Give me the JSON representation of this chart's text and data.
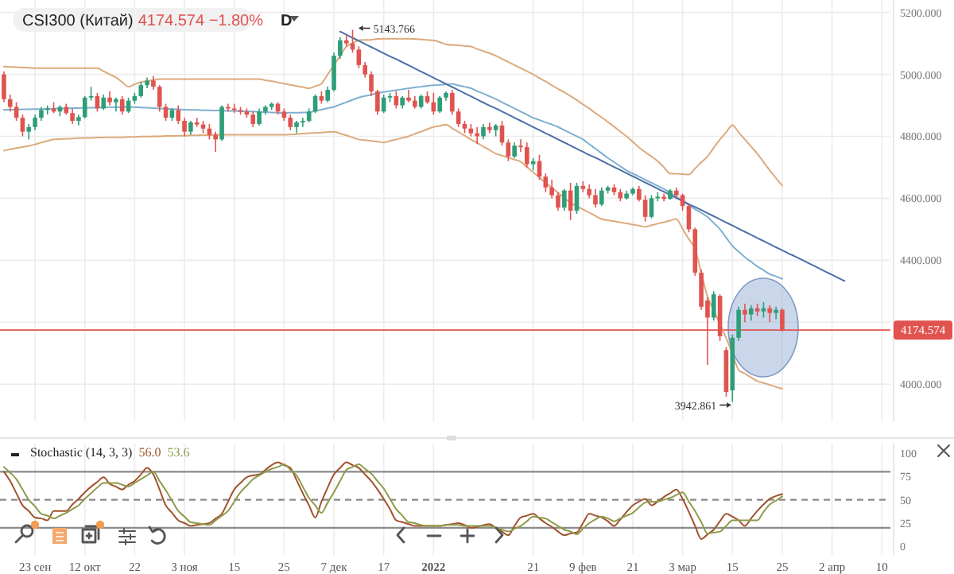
{
  "chart_data": [
    {
      "type": "candlestick",
      "title": "CSI300 (Китай)",
      "subtitle": "4174.574 −1.80%",
      "annotations": [
        "D",
        "5143.766",
        "3942.861"
      ],
      "categories": [
        null,
        null,
        null,
        null,
        null,
        null,
        null,
        null,
        null,
        null,
        null,
        null,
        null,
        null,
        null,
        null,
        null,
        null,
        null,
        null,
        null,
        null,
        null,
        null,
        null,
        null,
        null,
        null,
        null,
        null,
        null,
        null,
        null,
        null,
        null,
        null,
        null,
        null,
        null,
        null,
        null,
        null,
        null,
        null,
        null,
        null,
        null,
        null,
        null,
        null,
        null,
        null,
        null,
        null,
        null,
        null,
        null,
        null,
        null,
        null,
        null,
        null,
        null,
        null,
        null,
        null,
        null,
        null,
        null,
        null,
        null,
        null,
        null,
        null,
        null,
        null,
        null,
        null,
        null,
        null,
        null,
        null,
        null,
        null,
        null,
        null,
        null,
        null,
        null,
        null,
        null,
        null,
        null,
        null,
        null,
        null,
        null,
        null,
        null,
        null,
        null,
        null,
        null,
        null,
        null,
        null,
        null,
        null,
        null,
        null,
        null,
        null,
        null,
        null,
        null,
        null,
        null,
        null,
        null,
        null,
        null,
        null,
        null,
        null,
        null,
        null,
        null,
        null,
        null,
        null,
        null,
        null,
        null,
        null,
        null,
        null,
        null,
        null,
        null,
        null,
        null,
        null,
        null
      ],
      "ohlc": [
        [
          5000,
          5010,
          4910,
          4920
        ],
        [
          4920,
          4935,
          4880,
          4895
        ],
        [
          4895,
          4910,
          4850,
          4860
        ],
        [
          4860,
          4870,
          4800,
          4815
        ],
        [
          4815,
          4840,
          4790,
          4830
        ],
        [
          4830,
          4870,
          4820,
          4860
        ],
        [
          4860,
          4895,
          4850,
          4885
        ],
        [
          4885,
          4900,
          4870,
          4890
        ],
        [
          4890,
          4910,
          4875,
          4880
        ],
        [
          4880,
          4900,
          4865,
          4895
        ],
        [
          4895,
          4905,
          4870,
          4875
        ],
        [
          4875,
          4890,
          4840,
          4850
        ],
        [
          4850,
          4870,
          4835,
          4862
        ],
        [
          4862,
          4930,
          4858,
          4925
        ],
        [
          4925,
          4960,
          4915,
          4930
        ],
        [
          4930,
          4940,
          4880,
          4890
        ],
        [
          4890,
          4935,
          4885,
          4925
        ],
        [
          4925,
          4945,
          4900,
          4910
        ],
        [
          4910,
          4925,
          4880,
          4920
        ],
        [
          4920,
          4930,
          4870,
          4880
        ],
        [
          4880,
          4925,
          4875,
          4915
        ],
        [
          4915,
          4940,
          4905,
          4930
        ],
        [
          4930,
          4975,
          4925,
          4965
        ],
        [
          4965,
          4990,
          4955,
          4980
        ],
        [
          4980,
          4995,
          4950,
          4960
        ],
        [
          4960,
          4965,
          4880,
          4895
        ],
        [
          4895,
          4905,
          4850,
          4860
        ],
        [
          4860,
          4890,
          4850,
          4885
        ],
        [
          4885,
          4900,
          4840,
          4850
        ],
        [
          4850,
          4860,
          4800,
          4815
        ],
        [
          4815,
          4850,
          4805,
          4845
        ],
        [
          4845,
          4860,
          4830,
          4838
        ],
        [
          4838,
          4850,
          4810,
          4825
        ],
        [
          4825,
          4840,
          4790,
          4805
        ],
        [
          4805,
          4815,
          4750,
          4790
        ],
        [
          4790,
          4900,
          4785,
          4895
        ],
        [
          4895,
          4905,
          4880,
          4890
        ],
        [
          4890,
          4905,
          4875,
          4885
        ],
        [
          4885,
          4895,
          4870,
          4880
        ],
        [
          4880,
          4890,
          4860,
          4870
        ],
        [
          4870,
          4880,
          4830,
          4840
        ],
        [
          4840,
          4890,
          4835,
          4880
        ],
        [
          4880,
          4900,
          4870,
          4895
        ],
        [
          4895,
          4910,
          4885,
          4905
        ],
        [
          4905,
          4910,
          4870,
          4880
        ],
        [
          4880,
          4890,
          4850,
          4860
        ],
        [
          4860,
          4870,
          4820,
          4830
        ],
        [
          4830,
          4850,
          4810,
          4845
        ],
        [
          4845,
          4860,
          4830,
          4850
        ],
        [
          4850,
          4890,
          4845,
          4880
        ],
        [
          4880,
          4935,
          4875,
          4930
        ],
        [
          4930,
          4945,
          4905,
          4915
        ],
        [
          4915,
          4960,
          4910,
          4950
        ],
        [
          4950,
          5070,
          4945,
          5060
        ],
        [
          5060,
          5120,
          5050,
          5110
        ],
        [
          5110,
          5130,
          5090,
          5100
        ],
        [
          5100,
          5143.766,
          5070,
          5080
        ],
        [
          5080,
          5090,
          5020,
          5030
        ],
        [
          5030,
          5040,
          4990,
          5000
        ],
        [
          5000,
          5010,
          4930,
          4945
        ],
        [
          4945,
          4950,
          4870,
          4880
        ],
        [
          4880,
          4935,
          4875,
          4925
        ],
        [
          4925,
          4940,
          4910,
          4930
        ],
        [
          4930,
          4945,
          4890,
          4900
        ],
        [
          4900,
          4930,
          4890,
          4925
        ],
        [
          4925,
          4950,
          4910,
          4915
        ],
        [
          4915,
          4930,
          4890,
          4895
        ],
        [
          4895,
          4935,
          4890,
          4930
        ],
        [
          4930,
          4945,
          4905,
          4910
        ],
        [
          4910,
          4940,
          4870,
          4880
        ],
        [
          4880,
          4930,
          4875,
          4925
        ],
        [
          4925,
          4945,
          4915,
          4940
        ],
        [
          4940,
          4950,
          4870,
          4880
        ],
        [
          4880,
          4890,
          4830,
          4840
        ],
        [
          4840,
          4850,
          4810,
          4825
        ],
        [
          4825,
          4840,
          4800,
          4810
        ],
        [
          4810,
          4830,
          4775,
          4800
        ],
        [
          4800,
          4840,
          4790,
          4830
        ],
        [
          4830,
          4845,
          4810,
          4820
        ],
        [
          4820,
          4840,
          4800,
          4835
        ],
        [
          4835,
          4850,
          4770,
          4780
        ],
        [
          4780,
          4790,
          4720,
          4735
        ],
        [
          4735,
          4780,
          4730,
          4770
        ],
        [
          4770,
          4790,
          4750,
          4765
        ],
        [
          4765,
          4780,
          4700,
          4710
        ],
        [
          4710,
          4730,
          4690,
          4720
        ],
        [
          4720,
          4740,
          4660,
          4670
        ],
        [
          4670,
          4680,
          4620,
          4635
        ],
        [
          4635,
          4660,
          4600,
          4610
        ],
        [
          4610,
          4620,
          4560,
          4570
        ],
        [
          4570,
          4630,
          4560,
          4625
        ],
        [
          4625,
          4650,
          4530,
          4560
        ],
        [
          4560,
          4650,
          4550,
          4640
        ],
        [
          4640,
          4655,
          4620,
          4630
        ],
        [
          4630,
          4645,
          4600,
          4610
        ],
        [
          4610,
          4630,
          4570,
          4580
        ],
        [
          4580,
          4635,
          4575,
          4625
        ],
        [
          4625,
          4640,
          4615,
          4635
        ],
        [
          4635,
          4645,
          4610,
          4620
        ],
        [
          4620,
          4630,
          4590,
          4600
        ],
        [
          4600,
          4625,
          4595,
          4615
        ],
        [
          4615,
          4635,
          4610,
          4630
        ],
        [
          4630,
          4640,
          4590,
          4595
        ],
        [
          4595,
          4610,
          4525,
          4540
        ],
        [
          4540,
          4610,
          4535,
          4600
        ],
        [
          4600,
          4620,
          4590,
          4605
        ],
        [
          4605,
          4615,
          4590,
          4598
        ],
        [
          4598,
          4630,
          4595,
          4625
        ],
        [
          4625,
          4635,
          4600,
          4610
        ],
        [
          4610,
          4615,
          4560,
          4575
        ],
        [
          4575,
          4580,
          4490,
          4500
        ],
        [
          4500,
          4505,
          4350,
          4360
        ],
        [
          4360,
          4370,
          4240,
          4250
        ],
        [
          4270,
          4280,
          4062,
          4215
        ],
        [
          4215,
          4300,
          4205,
          4290
        ],
        [
          4285,
          4290,
          4140,
          4155
        ],
        [
          4110,
          4120,
          3960,
          3975
        ],
        [
          3980,
          4160,
          3942.861,
          4150
        ],
        [
          4150,
          4250,
          4140,
          4240
        ],
        [
          4240,
          4260,
          4200,
          4225
        ],
        [
          4225,
          4255,
          4205,
          4245
        ],
        [
          4245,
          4260,
          4220,
          4235
        ],
        [
          4235,
          4265,
          4215,
          4245
        ],
        [
          4245,
          4255,
          4200,
          4230
        ],
        [
          4230,
          4250,
          4210,
          4240
        ],
        [
          4240,
          4245,
          4170,
          4174.574
        ],
        null,
        null,
        null,
        null,
        null,
        null,
        null,
        null,
        null,
        null,
        null,
        null,
        null,
        null,
        null,
        null,
        null
      ],
      "series": [
        {
          "type": "line",
          "color": "#dcaa7c",
          "values": [
            5025,
            5024,
            5023,
            5022,
            5021,
            5020,
            5020,
            5020,
            5020,
            5020,
            5020,
            5020,
            5020,
            5020,
            5020,
            5020,
            5010,
            5000,
            4990,
            4975,
            4960,
            4968,
            4975,
            4978,
            4982,
            4985,
            4985,
            4985,
            4985,
            4985,
            4985,
            4985,
            4985,
            4985,
            4985,
            4985,
            4985,
            4985,
            4985,
            4985,
            4985,
            4985,
            4981,
            4978,
            4974,
            4970,
            4966,
            4962,
            4959,
            4955,
            4962,
            4970,
            5000,
            5030,
            5060,
            5090,
            5100,
            5110,
            5111,
            5112,
            5114,
            5115,
            5115,
            5115,
            5115,
            5115,
            5114,
            5113,
            5111,
            5110,
            5104,
            5097,
            5095,
            5094,
            5092,
            5090,
            5082,
            5075,
            5068,
            5060,
            5050,
            5040,
            5030,
            5020,
            5010,
            5000,
            4988,
            4977,
            4965,
            4953,
            4942,
            4930,
            4917,
            4903,
            4890,
            4875,
            4861,
            4846,
            4831,
            4815,
            4800,
            4782,
            4764,
            4749,
            4735,
            4720,
            4700,
            4680,
            4679,
            4678,
            4677,
            4696,
            4716,
            4735,
            4763,
            4790,
            4813,
            4836,
            4813,
            4790,
            4767,
            4744,
            4717,
            4690,
            4665,
            4641,
            null,
            null,
            null,
            null,
            null,
            null,
            null,
            null,
            null,
            null,
            null,
            null,
            null,
            null,
            null,
            null,
            null
          ]
        },
        {
          "type": "line",
          "color": "#7fb0cf",
          "values": [
            4885,
            4886,
            4886,
            4887,
            4887,
            4888,
            4888,
            4889,
            4889,
            4890,
            4890,
            4891,
            4891,
            4892,
            4892,
            4893,
            4893,
            4894,
            4894,
            4895,
            4895,
            4894,
            4893,
            4892,
            4891,
            4890,
            4889,
            4888,
            4887,
            4886,
            4885,
            4885,
            4884,
            4884,
            4883,
            4883,
            4882,
            4882,
            4881,
            4881,
            4880,
            4879,
            4878,
            4877,
            4876,
            4875,
            4876,
            4876,
            4877,
            4877,
            4882,
            4886,
            4891,
            4895,
            4903,
            4910,
            4918,
            4925,
            4930,
            4934,
            4939,
            4943,
            4946,
            4949,
            4952,
            4955,
            4958,
            4960,
            4963,
            4965,
            4966,
            4968,
            4969,
            4964,
            4960,
            4955,
            4946,
            4938,
            4929,
            4920,
            4910,
            4900,
            4890,
            4880,
            4870,
            4860,
            4853,
            4845,
            4838,
            4830,
            4820,
            4810,
            4800,
            4790,
            4775,
            4760,
            4745,
            4730,
            4717,
            4703,
            4690,
            4680,
            4670,
            4660,
            4650,
            4640,
            4630,
            4618,
            4605,
            4592,
            4578,
            4565,
            4553,
            4540,
            4520,
            4500,
            4473,
            4446,
            4428,
            4410,
            4395,
            4380,
            4368,
            4355,
            4348,
            4340,
            null,
            null,
            null,
            null,
            null,
            null,
            null,
            null,
            null,
            null,
            null,
            null,
            null,
            null,
            null,
            null,
            null
          ]
        },
        {
          "type": "line",
          "color": "#dcaa7c",
          "values": [
            4754,
            4758,
            4762,
            4765,
            4769,
            4774,
            4780,
            4785,
            4790,
            4791,
            4792,
            4793,
            4794,
            4795,
            4795,
            4796,
            4796,
            4797,
            4797,
            4797,
            4798,
            4798,
            4799,
            4799,
            4800,
            4800,
            4801,
            4801,
            4802,
            4802,
            4803,
            4803,
            4804,
            4804,
            4805,
            4805,
            4805,
            4805,
            4805,
            4805,
            4805,
            4805,
            4805,
            4805,
            4805,
            4805,
            4806,
            4807,
            4809,
            4810,
            4811,
            4812,
            4814,
            4815,
            4809,
            4803,
            4796,
            4790,
            4788,
            4785,
            4783,
            4780,
            4785,
            4790,
            4795,
            4800,
            4808,
            4815,
            4823,
            4830,
            4834,
            4838,
            4826,
            4814,
            4802,
            4790,
            4779,
            4767,
            4756,
            4744,
            4738,
            4731,
            4725,
            4718,
            4701,
            4684,
            4667,
            4650,
            4634,
            4618,
            4601,
            4585,
            4575,
            4564,
            4554,
            4543,
            4533,
            4529,
            4526,
            4522,
            4519,
            4515,
            4512,
            4508,
            4513,
            4518,
            4523,
            4528,
            4533,
            4501,
            4468,
            4436,
            4359,
            4282,
            4238,
            4193,
            4149,
            4098,
            4046,
            4034,
            4022,
            4010,
            4004,
            3998,
            3991,
            3985,
            null,
            null,
            null,
            null,
            null,
            null,
            null,
            null,
            null,
            null,
            null,
            null,
            null,
            null,
            null,
            null,
            null
          ]
        },
        {
          "type": "line",
          "color": "#4b6fa8",
          "values": [
            null,
            null,
            null,
            null,
            null,
            null,
            null,
            null,
            null,
            null,
            null,
            null,
            null,
            null,
            null,
            null,
            null,
            null,
            null,
            null,
            null,
            null,
            null,
            null,
            null,
            null,
            null,
            null,
            null,
            null,
            null,
            null,
            null,
            null,
            null,
            null,
            null,
            null,
            null,
            null,
            null,
            null,
            null,
            null,
            null,
            null,
            null,
            null,
            null,
            null,
            null,
            null,
            null,
            null,
            5138,
            5128,
            5118,
            5108,
            5098,
            5088,
            5078,
            5068,
            5058,
            5049,
            5039,
            5029,
            5019,
            5009,
            4999,
            4989,
            4979,
            4969,
            4959,
            4949,
            4939,
            4929,
            4919,
            4909,
            4899,
            4890,
            4880,
            4870,
            4860,
            4850,
            4840,
            4830,
            4820,
            4810,
            4800,
            4790,
            4780,
            4770,
            4760,
            4750,
            4740,
            4731,
            4721,
            4711,
            4701,
            4691,
            4681,
            4671,
            4661,
            4651,
            4641,
            4631,
            4621,
            4611,
            4601,
            4591,
            4581,
            4572,
            4562,
            4552,
            4542,
            4532,
            4522,
            4512,
            4502,
            4492,
            4482,
            4472,
            4462,
            4452,
            4442,
            4432,
            4422,
            4413,
            4403,
            4393,
            4383,
            4373,
            4363,
            4353,
            4343,
            4333,
            null,
            null,
            null,
            null,
            null,
            null,
            null
          ]
        }
      ],
      "ylim": [
        3880,
        5240
      ],
      "yticks": [
        {
          "value": 4000,
          "label": "4000.000"
        },
        {
          "value": 4200,
          "label": null
        },
        {
          "value": 4400,
          "label": "4400.000"
        },
        {
          "value": 4600,
          "label": "4600.000"
        },
        {
          "value": 4800,
          "label": "4800.000"
        },
        {
          "value": 5000,
          "label": "5000.000"
        },
        {
          "value": 5200,
          "label": "5200.000"
        }
      ],
      "ref_lines": [
        {
          "axis": "y",
          "value": 4174.574,
          "label": "4174.574",
          "color": "#e0534f"
        }
      ],
      "grid": true,
      "tick_labels": "y"
    },
    {
      "type": "line",
      "title": "Stochastic (14, 3, 3)",
      "annotations": [
        "56.0",
        "53.6"
      ],
      "categories": [
        null,
        null,
        null,
        null,
        null,
        "23 сен",
        null,
        null,
        null,
        null,
        null,
        null,
        null,
        "12 окт",
        null,
        null,
        null,
        null,
        null,
        null,
        null,
        "22",
        null,
        null,
        null,
        null,
        null,
        null,
        null,
        "3 ноя",
        null,
        null,
        null,
        null,
        null,
        null,
        null,
        "15",
        null,
        null,
        null,
        null,
        null,
        null,
        null,
        "25",
        null,
        null,
        null,
        null,
        null,
        null,
        null,
        "7 дек",
        null,
        null,
        null,
        null,
        null,
        null,
        null,
        "17",
        null,
        null,
        null,
        null,
        null,
        null,
        null,
        "2022",
        null,
        null,
        null,
        null,
        null,
        null,
        null,
        null,
        null,
        null,
        null,
        null,
        null,
        null,
        null,
        "21",
        null,
        null,
        null,
        null,
        null,
        null,
        null,
        "9 фев",
        null,
        null,
        null,
        null,
        null,
        null,
        null,
        "21",
        null,
        null,
        null,
        null,
        null,
        null,
        null,
        "3 мар",
        null,
        null,
        null,
        null,
        null,
        null,
        null,
        "15",
        null,
        null,
        null,
        null,
        null,
        null,
        null,
        "25",
        null,
        null,
        null,
        null,
        null,
        null,
        null,
        "2 апр",
        null,
        null,
        null,
        null,
        null,
        null,
        null,
        "10",
        null
      ],
      "series": [
        {
          "color": "#a0522d",
          "values": [
            80,
            70,
            57,
            44,
            38,
            31,
            30,
            28,
            38,
            38,
            38,
            45,
            51,
            58,
            64,
            69,
            74,
            67,
            64,
            61,
            66,
            70,
            77,
            84,
            77,
            61,
            44,
            36,
            28,
            25,
            22,
            23,
            24,
            25,
            30,
            35,
            48,
            61,
            68,
            74,
            76,
            77,
            82,
            87,
            90,
            87,
            84,
            71,
            57,
            44,
            31,
            48,
            63,
            77,
            84,
            90,
            87,
            84,
            77,
            70,
            61,
            51,
            40,
            28,
            26,
            24,
            22,
            22,
            22,
            22,
            22,
            23,
            24,
            25,
            23,
            20,
            21,
            23,
            24,
            20,
            16,
            12,
            22,
            31,
            33,
            35,
            30,
            25,
            21,
            16,
            12,
            14,
            15,
            25,
            35,
            33,
            31,
            27,
            22,
            29,
            37,
            44,
            48,
            51,
            44,
            48,
            53,
            57,
            61,
            51,
            37,
            22,
            8,
            13,
            18,
            27,
            35,
            32,
            28,
            22,
            30,
            38,
            45,
            51,
            54,
            56,
            null,
            null,
            null,
            null,
            null,
            null,
            null,
            null,
            null,
            null,
            null,
            null,
            null,
            null,
            null,
            null,
            null
          ]
        },
        {
          "color": "#8f9a4a",
          "values": [
            85,
            79,
            72,
            61,
            50,
            43,
            35,
            33,
            30,
            33,
            36,
            40,
            44,
            51,
            57,
            63,
            68,
            68,
            68,
            66,
            64,
            68,
            72,
            76,
            80,
            70,
            60,
            49,
            38,
            32,
            26,
            25,
            24,
            23,
            28,
            33,
            38,
            48,
            58,
            65,
            72,
            76,
            80,
            83,
            85,
            88,
            82,
            76,
            64,
            52,
            44,
            36,
            47,
            58,
            70,
            82,
            85,
            88,
            83,
            78,
            70,
            62,
            51,
            40,
            33,
            26,
            25,
            23,
            22,
            22,
            22,
            23,
            23,
            23,
            22,
            22,
            22,
            22,
            22,
            20,
            18,
            16,
            19,
            22,
            27,
            32,
            31,
            30,
            26,
            22,
            18,
            16,
            13,
            19,
            25,
            29,
            32,
            30,
            27,
            30,
            33,
            36,
            42,
            47,
            48,
            48,
            50,
            52,
            55,
            58,
            48,
            38,
            26,
            14,
            15,
            16,
            22,
            28,
            28,
            28,
            28,
            28,
            37,
            45,
            49,
            53.6,
            null,
            null,
            null,
            null,
            null,
            null,
            null,
            null,
            null,
            null,
            null,
            null,
            null,
            null,
            null,
            null,
            null
          ]
        }
      ],
      "ylim": [
        -9,
        110
      ],
      "yticks": [
        0,
        25,
        50,
        75,
        100
      ],
      "ref_lines": [
        {
          "axis": "y",
          "value": 80,
          "color": "#8a8a8a",
          "line_style": "solid"
        },
        {
          "axis": "y",
          "value": 50,
          "color": "#8a8a8a",
          "line_style": "dashed"
        },
        {
          "axis": "y",
          "value": 20,
          "color": "#8a8a8a",
          "line_style": "solid"
        }
      ],
      "grid": "x"
    }
  ]
}
